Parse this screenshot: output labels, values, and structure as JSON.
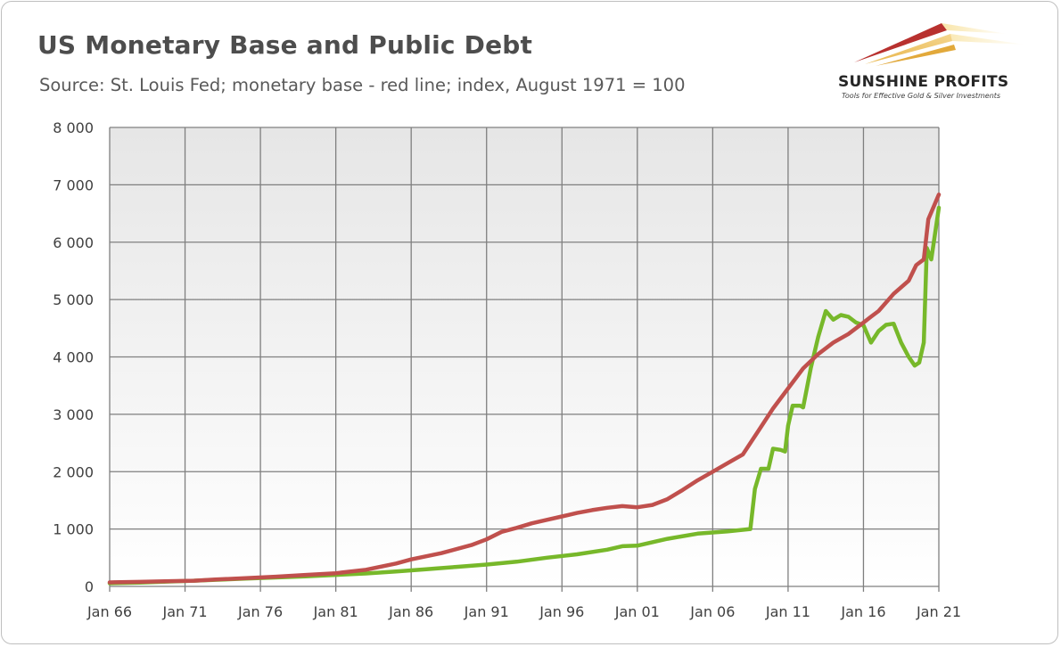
{
  "header": {
    "title": "US Monetary Base and Public Debt",
    "subtitle": "Source: St. Louis Fed; monetary base - red line; index, August 1971 = 100"
  },
  "logo": {
    "name": "SUNSHINE PROFITS",
    "tagline": "Tools for Effective Gold & Silver Investments"
  },
  "colors": {
    "monetary_base": "#c0504d",
    "public_debt": "#77b82a",
    "grid": "#7f7f7f"
  },
  "chart_data": {
    "type": "line",
    "title": "US Monetary Base and Public Debt",
    "xlabel": "",
    "ylabel": "",
    "x_ticks": [
      "Jan 66",
      "Jan 71",
      "Jan 76",
      "Jan 81",
      "Jan 86",
      "Jan 91",
      "Jan 96",
      "Jan 01",
      "Jan 06",
      "Jan 11",
      "Jan 16",
      "Jan 21"
    ],
    "y_ticks": [
      "0",
      "1 000",
      "2 000",
      "3 000",
      "4 000",
      "5 000",
      "6 000",
      "7 000",
      "8 000"
    ],
    "xlim": [
      1966,
      2021
    ],
    "ylim": [
      0,
      8000
    ],
    "grid": true,
    "legend": "none",
    "series": [
      {
        "color": "#c0504d",
        "x": [
          1966,
          1968,
          1970,
          1971.6,
          1973,
          1975,
          1977,
          1979,
          1981,
          1983,
          1985,
          1986,
          1988,
          1990,
          1991,
          1992,
          1993,
          1994,
          1995,
          1996,
          1997,
          1998,
          1999,
          2000,
          2001,
          2002,
          2003,
          2004,
          2005,
          2006,
          2007,
          2008,
          2008.5,
          2009,
          2010,
          2011,
          2012,
          2013,
          2014,
          2015,
          2016,
          2016.5,
          2017,
          2018,
          2019,
          2019.5,
          2020,
          2020.3,
          2021
        ],
        "y": [
          70,
          80,
          92,
          100,
          120,
          145,
          170,
          200,
          230,
          290,
          400,
          470,
          580,
          720,
          820,
          950,
          1020,
          1100,
          1160,
          1220,
          1280,
          1330,
          1370,
          1400,
          1380,
          1420,
          1520,
          1680,
          1850,
          2000,
          2150,
          2300,
          2500,
          2700,
          3100,
          3450,
          3800,
          4050,
          4250,
          4400,
          4600,
          4700,
          4800,
          5100,
          5330,
          5600,
          5700,
          6400,
          6830
        ]
      },
      {
        "color": "#77b82a",
        "x": [
          1966,
          1968,
          1970,
          1971.6,
          1973,
          1975,
          1977,
          1979,
          1981,
          1983,
          1985,
          1987,
          1989,
          1991,
          1993,
          1995,
          1997,
          1999,
          2000,
          2001,
          2003,
          2005,
          2007,
          2008.5,
          2008.8,
          2009.2,
          2009.7,
          2010.0,
          2010.5,
          2010.8,
          2011.0,
          2011.3,
          2011.6,
          2011.8,
          2012.0,
          2012.5,
          2013.0,
          2013.5,
          2014.0,
          2014.5,
          2015.0,
          2015.5,
          2016.0,
          2016.5,
          2017.0,
          2017.5,
          2018.0,
          2018.5,
          2019.0,
          2019.4,
          2019.7,
          2020.0,
          2020.2,
          2020.5,
          2021
        ],
        "y": [
          55,
          65,
          85,
          100,
          115,
          135,
          155,
          175,
          200,
          225,
          260,
          300,
          340,
          380,
          430,
          500,
          560,
          640,
          700,
          710,
          830,
          920,
          960,
          1000,
          1700,
          2050,
          2050,
          2400,
          2380,
          2350,
          2800,
          3150,
          3150,
          3150,
          3120,
          3800,
          4350,
          4800,
          4650,
          4730,
          4700,
          4600,
          4550,
          4250,
          4450,
          4560,
          4580,
          4250,
          4000,
          3850,
          3900,
          4250,
          5900,
          5700,
          6600
        ]
      }
    ]
  }
}
